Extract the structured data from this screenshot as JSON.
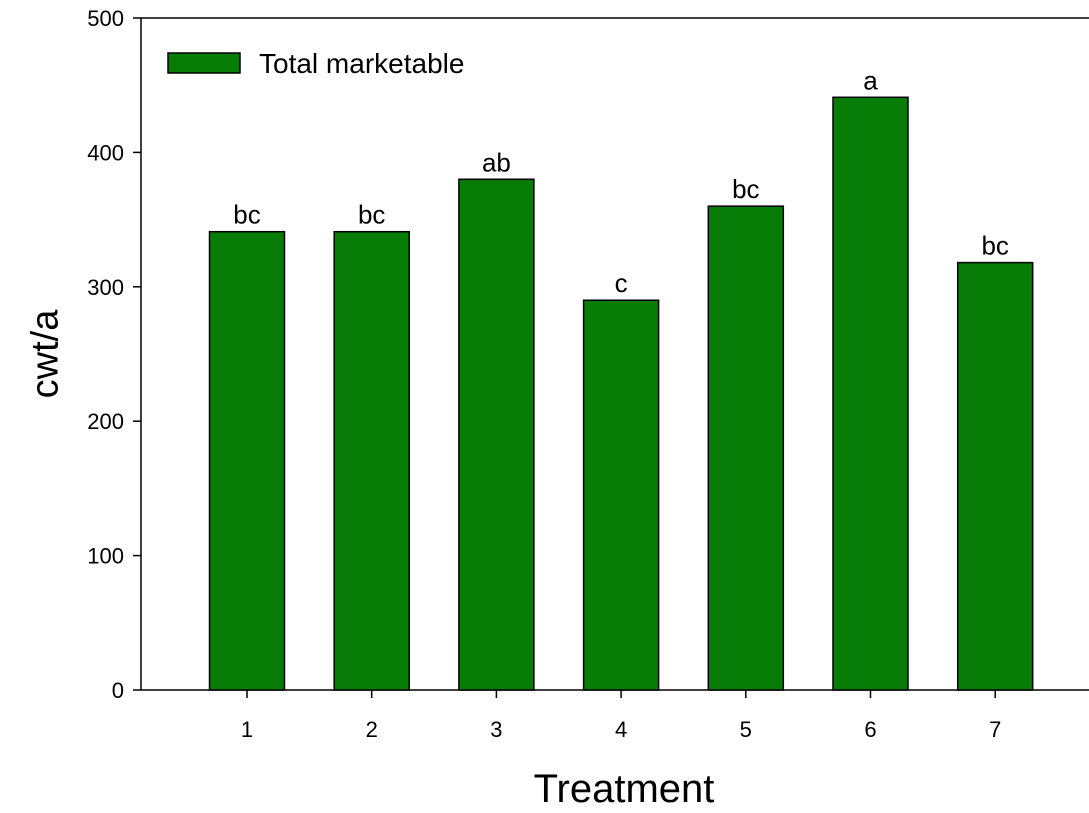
{
  "chart_data": {
    "type": "bar",
    "title": "",
    "xlabel": "Treatment",
    "ylabel": "cwt/a",
    "categories": [
      "1",
      "2",
      "3",
      "4",
      "5",
      "6",
      "7"
    ],
    "series": [
      {
        "name": "Total marketable",
        "values": [
          341,
          341,
          380,
          290,
          360,
          441,
          318
        ],
        "labels": [
          "bc",
          "bc",
          "ab",
          "c",
          "bc",
          "a",
          "bc"
        ],
        "color": "#077d07"
      }
    ],
    "ylim": [
      0,
      500
    ],
    "yticks": [
      "0",
      "100",
      "200",
      "300",
      "400",
      "500"
    ],
    "grid": false,
    "legend_position": "top-left",
    "bar_outline_color": "#000000"
  }
}
